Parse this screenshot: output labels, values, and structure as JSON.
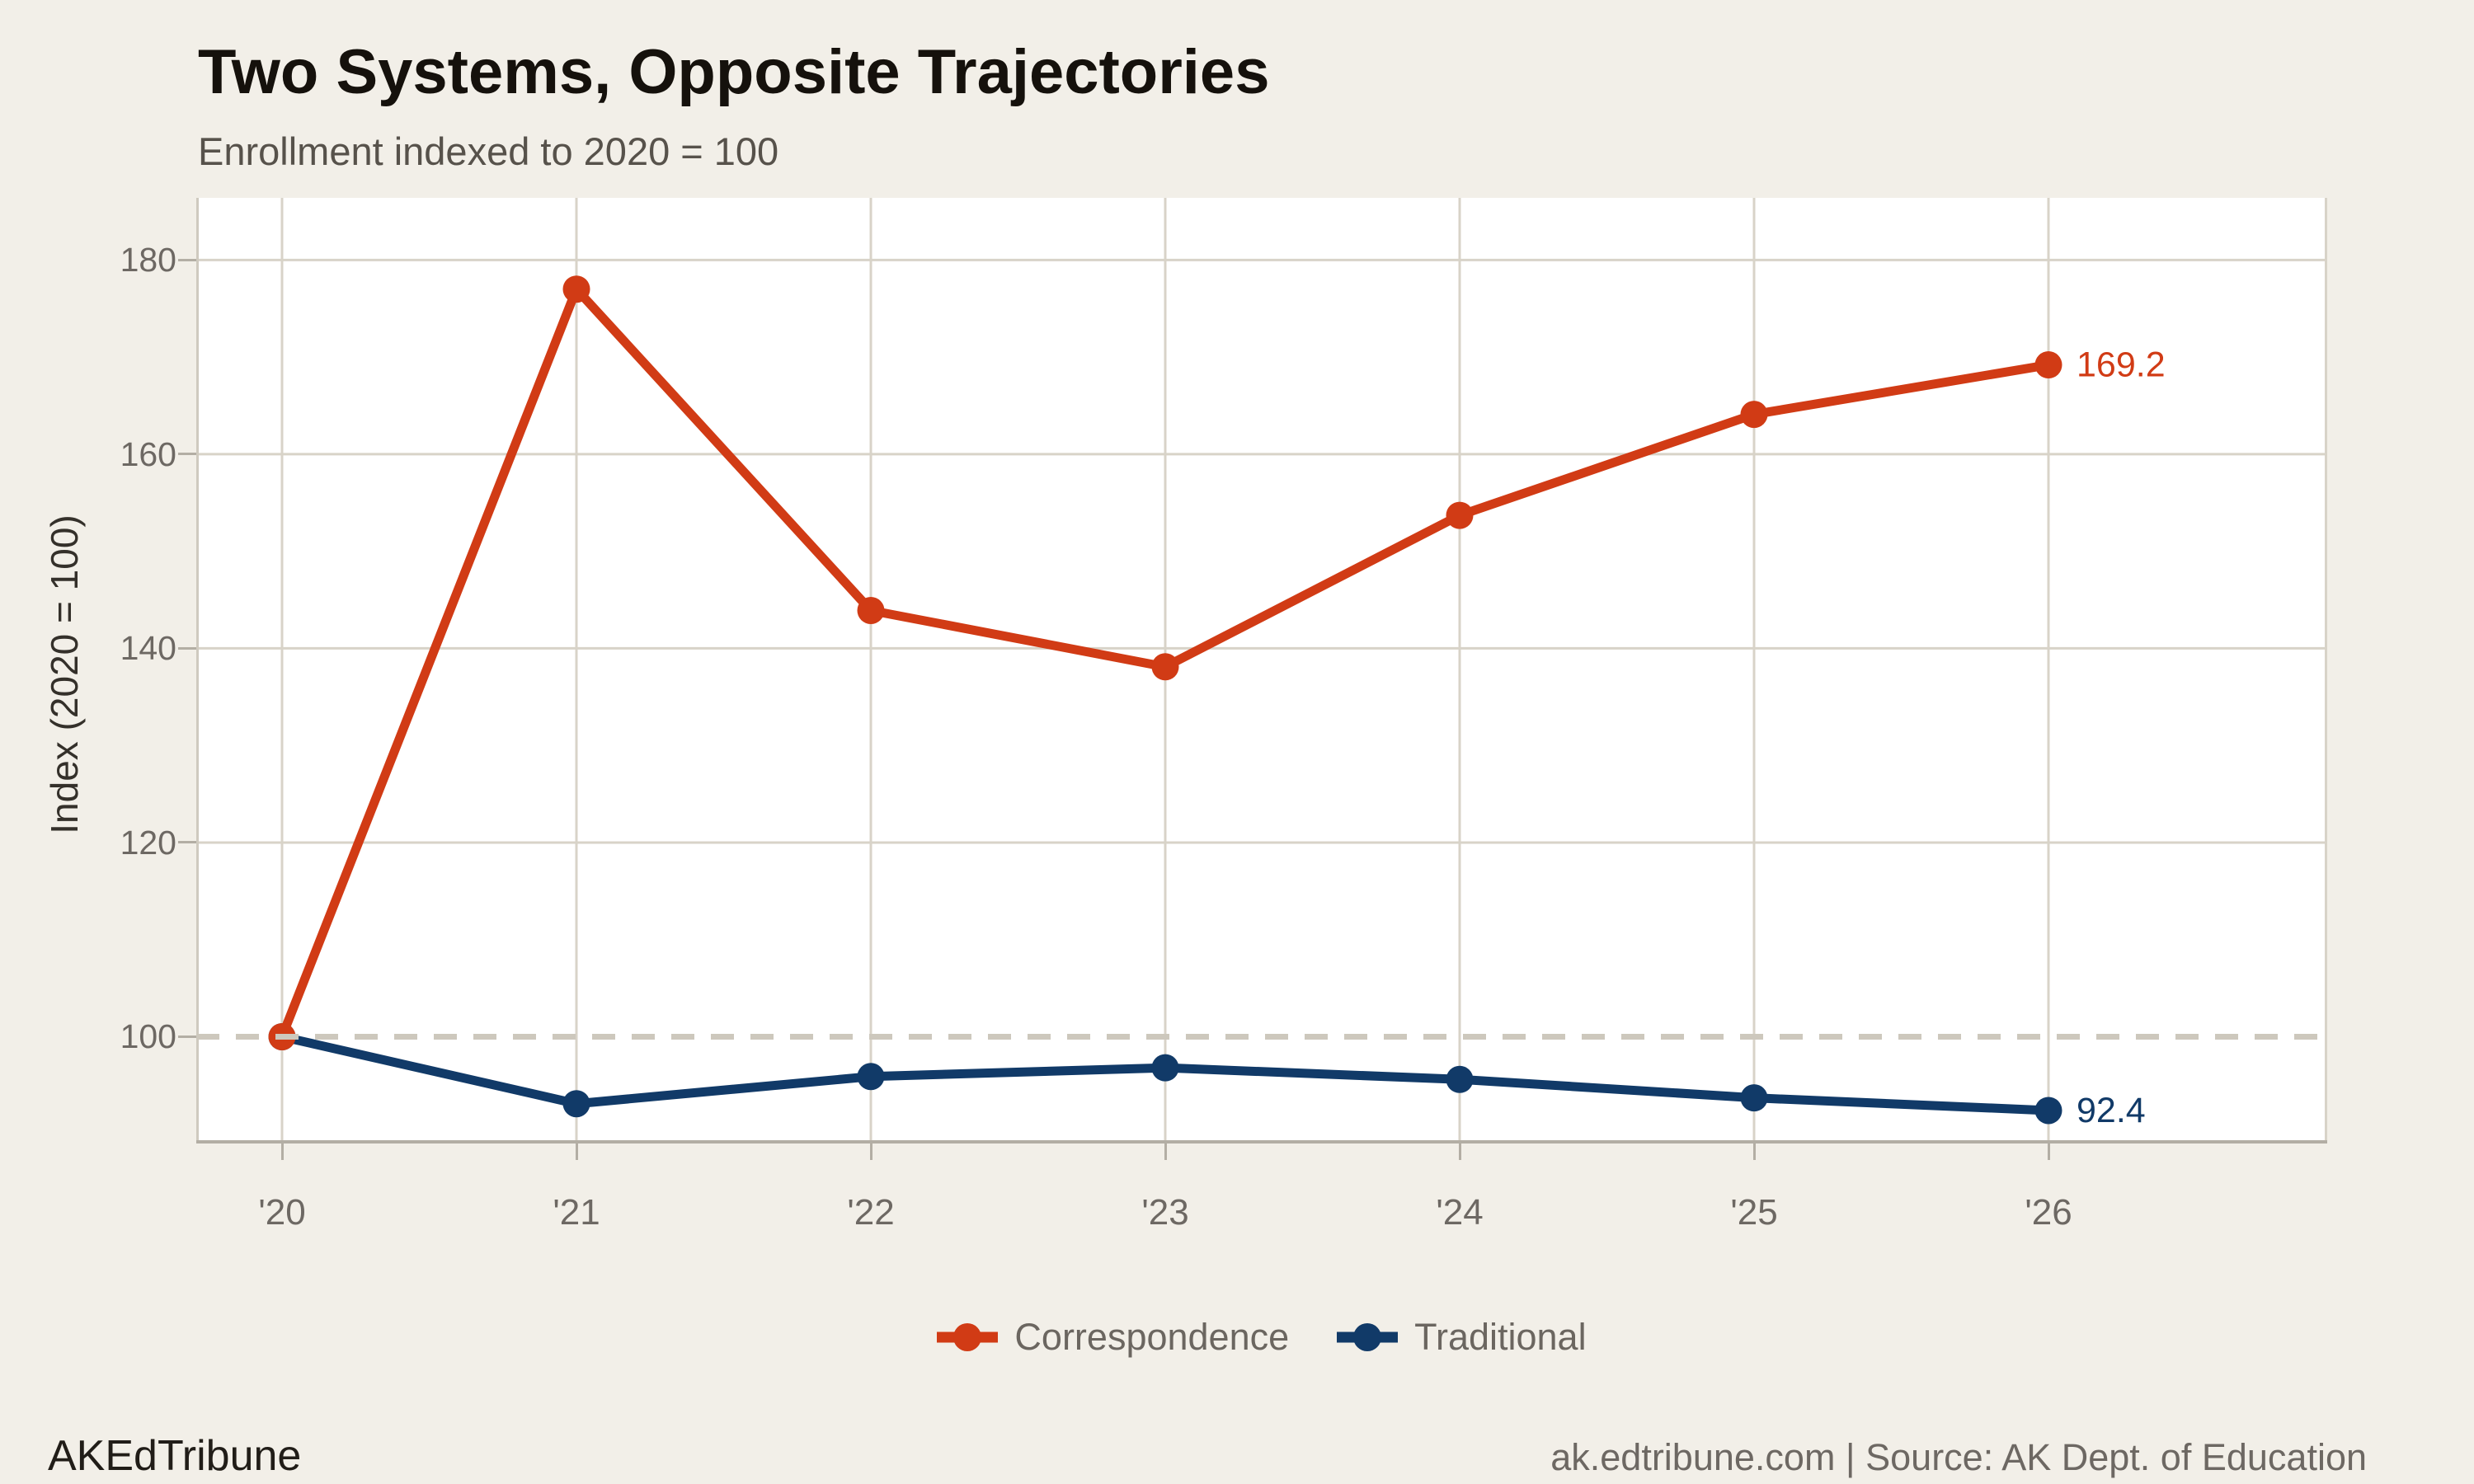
{
  "header": {
    "title": "Two Systems, Opposite Trajectories",
    "subtitle": "Enrollment indexed to 2020 = 100"
  },
  "footer": {
    "brand": "AKEdTribune",
    "source": "ak.edtribune.com | Source: AK Dept. of Education"
  },
  "colors": {
    "background": "#f2efe8",
    "plot_background": "#ffffff",
    "gridline": "#d8d3c8",
    "reference_dash": "#cdc8bd",
    "bottom_spine": "#b3aea4",
    "side_spine": "#cfcabf",
    "tick_text": "#6d6863",
    "correspondence_accent": "#d13b15",
    "traditional_accent": "#113a68"
  },
  "chart_data": {
    "type": "line",
    "title": "Two Systems, Opposite Trajectories",
    "subtitle": "Enrollment indexed to 2020 = 100",
    "xlabel": "",
    "ylabel": "Index (2020 = 100)",
    "x_tick_labels": [
      "'20",
      "'21",
      "'22",
      "'23",
      "'24",
      "'25",
      "'26"
    ],
    "yticks": [
      100,
      120,
      140,
      160,
      180
    ],
    "ylim": [
      89.0,
      186.4
    ],
    "grid": true,
    "legend_position": "bottom",
    "reference_line": {
      "value": 100,
      "style": "dashed"
    },
    "series": [
      {
        "name": "Correspondence",
        "color": "#d13b15",
        "values": [
          100,
          177,
          143.9,
          138.1,
          153.7,
          164.1,
          169.2
        ],
        "end_label": "169.2"
      },
      {
        "name": "Traditional",
        "color": "#113a68",
        "values": [
          100,
          93.1,
          95.9,
          96.8,
          95.6,
          93.7,
          92.4
        ],
        "end_label": "92.4"
      }
    ]
  }
}
